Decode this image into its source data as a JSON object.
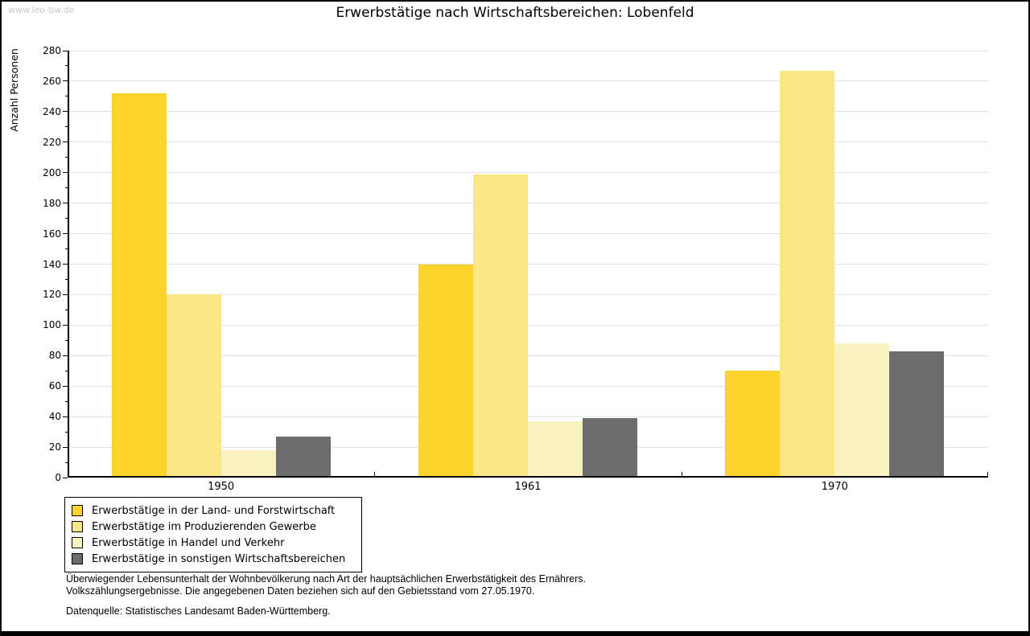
{
  "watermark": "www.leo-bw.de",
  "chart_data": {
    "type": "bar",
    "title": "Erwerbstätige nach Wirtschaftsbereichen: Lobenfeld",
    "ylabel": "Anzahl Personen",
    "xlabel": "",
    "categories": [
      "1950",
      "1961",
      "1970"
    ],
    "series": [
      {
        "name": "Erwerbstätige in der Land- und Forstwirtschaft",
        "color": "#FCD32B",
        "values": [
          252,
          140,
          70
        ]
      },
      {
        "name": "Erwerbstätige im Produzierenden Gewerbe",
        "color": "#FBE685",
        "values": [
          120,
          199,
          267
        ]
      },
      {
        "name": "Erwerbstätige in Handel und Verkehr",
        "color": "#FBF2C1",
        "values": [
          18,
          37,
          88
        ]
      },
      {
        "name": "Erwerbstätige in sonstigen Wirtschaftsbereichen",
        "color": "#6C6C6C",
        "values": [
          27,
          39,
          83
        ]
      }
    ],
    "ylim": [
      0,
      280
    ],
    "yticks": [
      0,
      20,
      40,
      60,
      80,
      100,
      120,
      140,
      160,
      180,
      200,
      220,
      240,
      260,
      280
    ],
    "minor_tick_step": 10,
    "grid": true,
    "gridline_color": "#e2e2e2",
    "legend_position": "bottom-left"
  },
  "footer": {
    "line1": "Überwiegender Lebensunterhalt der Wohnbevölkerung nach Art der hauptsächlichen Erwerbstätigkeit des Ernährers.",
    "line2": "Volkszählungsergebnisse. Die angegebenen Daten beziehen sich auf den Gebietsstand vom 27.05.1970.",
    "source": "Datenquelle: Statistisches Landesamt Baden-Württemberg."
  }
}
